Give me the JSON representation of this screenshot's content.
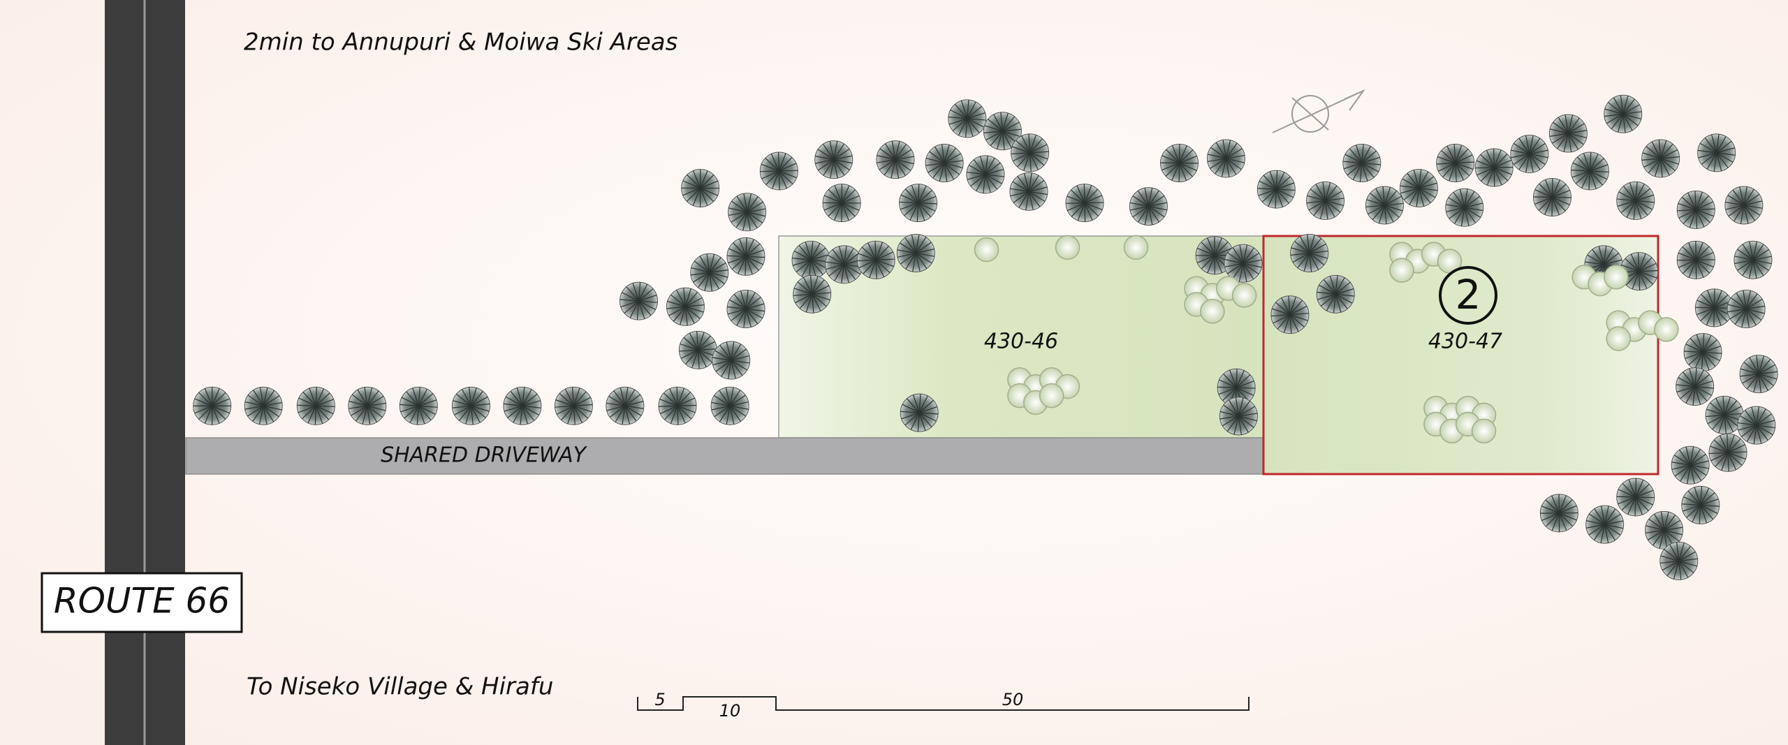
{
  "header": {
    "north_note": "2min to Annupuri & Moiwa Ski Areas",
    "south_note": "To Niseko Village & Hirafu"
  },
  "road": {
    "label": "ROUTE 66"
  },
  "driveway": {
    "label": "SHARED DRIVEWAY"
  },
  "lots": [
    {
      "label": "430-46"
    },
    {
      "label": "430-47",
      "marker": "2"
    }
  ],
  "scale_bar": {
    "labels": [
      "5",
      "10",
      "50"
    ]
  }
}
